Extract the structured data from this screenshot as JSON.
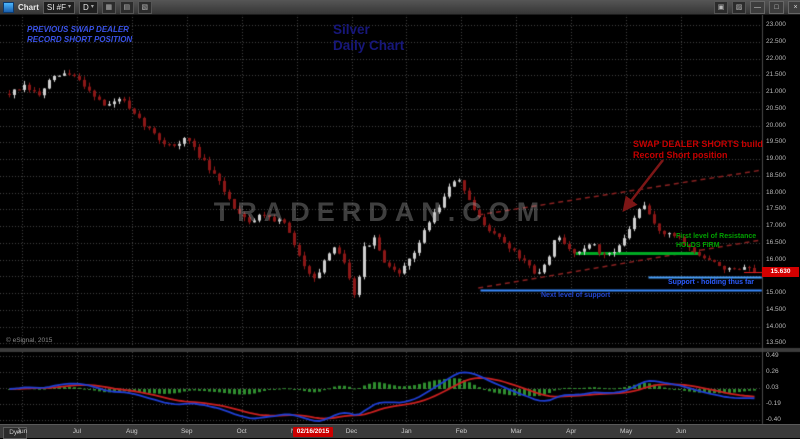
{
  "titlebar": {
    "app_label": "Chart",
    "symbol": "SI #F",
    "interval": "D"
  },
  "icons": {
    "caret": "▾",
    "minimize": "—",
    "maximize": "□",
    "close": "×",
    "chart_type": "▦",
    "studies": "▤",
    "drawing_tools": "▧",
    "print": "▣",
    "settings": "▨"
  },
  "annotations": {
    "prev_swap": {
      "lines": [
        "PREVIOUS SWAP DEALER",
        "RECORD SHORT POSITION"
      ],
      "color": "#3a53e8"
    },
    "title": {
      "lines": [
        "Silver",
        "Daily Chart"
      ],
      "color": "#17177a"
    },
    "swap_shorts": {
      "lines": [
        "SWAP DEALER SHORTS build",
        "Record Short position"
      ],
      "color": "#c40000"
    },
    "resistance": {
      "lines": [
        "First level of Resistance",
        "HOLDS FIRM"
      ],
      "color": "#00a000"
    },
    "support_holding": {
      "text": "Support - holding thus far",
      "color": "#2b5cff"
    },
    "next_support": {
      "text": "Next level of support",
      "color": "#2244cc"
    },
    "watermark": "TRADERDAN.COM",
    "copyright": "© eSignal, 2015"
  },
  "price_axis": {
    "labels": [
      "23.000",
      "22.500",
      "22.000",
      "21.500",
      "21.000",
      "20.500",
      "20.000",
      "19.500",
      "19.000",
      "18.500",
      "18.000",
      "17.500",
      "17.000",
      "16.500",
      "16.000",
      "15.500",
      "15.000",
      "14.500",
      "14.000",
      "13.500"
    ],
    "current": "15.630",
    "current_color": "#d40000"
  },
  "indicator_axis": {
    "labels": [
      "0.49",
      "0.26",
      "0.03",
      "-0.19",
      "-0.40"
    ]
  },
  "time_axis": {
    "left_label": "Dyn",
    "months": [
      "Jun",
      "Jul",
      "Aug",
      "Sep",
      "Oct",
      "Nov",
      "Dec",
      "Jan",
      "Feb",
      "Mar",
      "Apr",
      "May",
      "Jun"
    ],
    "cursor_date": "02/16/2015"
  },
  "chart_data": {
    "type": "candlestick",
    "title": "Silver Daily Chart",
    "symbol": "SI #F",
    "interval": "Daily",
    "ylim": [
      13.39,
      23.33
    ],
    "n_candles": 150,
    "price_path": [
      [
        0.0,
        20.95
      ],
      [
        0.02,
        21.15
      ],
      [
        0.04,
        20.9
      ],
      [
        0.055,
        21.35
      ],
      [
        0.072,
        21.55
      ],
      [
        0.09,
        21.45
      ],
      [
        0.11,
        21.0
      ],
      [
        0.13,
        20.55
      ],
      [
        0.15,
        20.85
      ],
      [
        0.163,
        20.4
      ],
      [
        0.185,
        19.95
      ],
      [
        0.205,
        19.5
      ],
      [
        0.225,
        19.4
      ],
      [
        0.238,
        19.65
      ],
      [
        0.255,
        19.1
      ],
      [
        0.27,
        18.65
      ],
      [
        0.285,
        18.2
      ],
      [
        0.3,
        17.6
      ],
      [
        0.312,
        17.35
      ],
      [
        0.325,
        17.1
      ],
      [
        0.34,
        17.4
      ],
      [
        0.355,
        17.2
      ],
      [
        0.37,
        17.1
      ],
      [
        0.386,
        16.2
      ],
      [
        0.4,
        15.7
      ],
      [
        0.412,
        15.45
      ],
      [
        0.425,
        16.0
      ],
      [
        0.44,
        16.4
      ],
      [
        0.455,
        15.6
      ],
      [
        0.466,
        14.8
      ],
      [
        0.474,
        16.3
      ],
      [
        0.49,
        16.6
      ],
      [
        0.505,
        15.8
      ],
      [
        0.52,
        15.6
      ],
      [
        0.533,
        15.8
      ],
      [
        0.55,
        16.5
      ],
      [
        0.565,
        17.2
      ],
      [
        0.58,
        17.7
      ],
      [
        0.595,
        18.3
      ],
      [
        0.603,
        18.45
      ],
      [
        0.615,
        17.8
      ],
      [
        0.63,
        17.25
      ],
      [
        0.645,
        16.9
      ],
      [
        0.66,
        16.6
      ],
      [
        0.679,
        16.2
      ],
      [
        0.695,
        15.85
      ],
      [
        0.708,
        15.45
      ],
      [
        0.722,
        16.0
      ],
      [
        0.735,
        16.7
      ],
      [
        0.751,
        16.3
      ],
      [
        0.765,
        16.2
      ],
      [
        0.78,
        16.55
      ],
      [
        0.795,
        16.1
      ],
      [
        0.81,
        16.25
      ],
      [
        0.825,
        16.55
      ],
      [
        0.84,
        17.3
      ],
      [
        0.852,
        17.6
      ],
      [
        0.865,
        17.1
      ],
      [
        0.878,
        16.75
      ],
      [
        0.898,
        16.7
      ],
      [
        0.912,
        16.35
      ],
      [
        0.928,
        16.1
      ],
      [
        0.945,
        15.9
      ],
      [
        0.96,
        15.75
      ],
      [
        0.975,
        15.65
      ],
      [
        0.988,
        15.72
      ],
      [
        1.0,
        15.63
      ]
    ],
    "last_price": 15.63,
    "levels": [
      {
        "name": "resistance-line",
        "price": 16.2,
        "x0": 0.757,
        "x1": 0.924,
        "color": "#00aa22",
        "width": 3
      },
      {
        "name": "support-near-line",
        "price": 15.48,
        "x0": 0.854,
        "x1": 1.005,
        "color": "#4aa3ff",
        "width": 2
      },
      {
        "name": "support-next-line",
        "price": 15.1,
        "x0": 0.63,
        "x1": 1.005,
        "color": "#3b8cff",
        "width": 2
      }
    ],
    "trendlines": [
      {
        "name": "wedge-upper",
        "x0": 0.627,
        "p0": 17.33,
        "x1": 1.005,
        "p1": 18.67,
        "color": "#8b2222"
      },
      {
        "name": "wedge-lower",
        "x0": 0.627,
        "p0": 15.15,
        "x1": 1.005,
        "p1": 16.59,
        "color": "#8b2222"
      }
    ],
    "colors": {
      "up": "#d0d0d0",
      "down": "#8c1717",
      "grid": "rgba(150,150,150,0.45)",
      "macd_line": "#1f3fd4",
      "signal_line": "#cc2020",
      "histogram": "#2f8f2f",
      "current_price": "#e02020"
    },
    "lower_panel": {
      "type": "macd-style oscillator",
      "derived_from": "closes (fast EMA minus slow EMA, with signal line and green histogram)"
    }
  }
}
